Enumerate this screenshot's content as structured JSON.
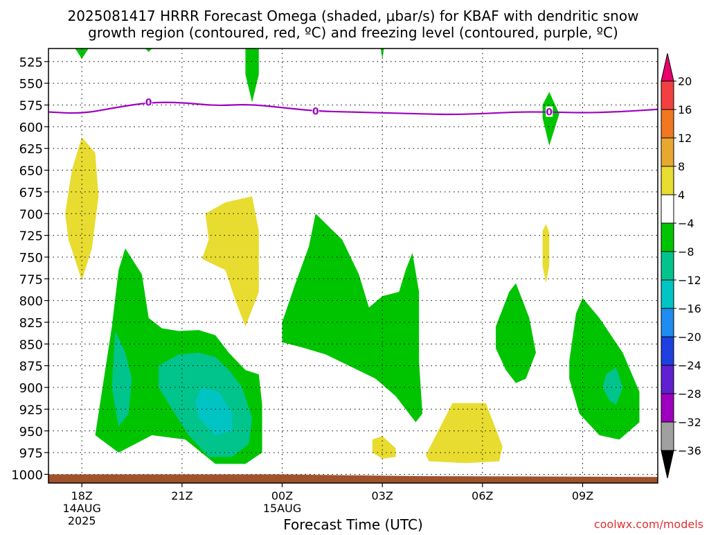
{
  "header": {
    "title_line1": "2025081417 HRRR Forecast Omega (shaded, μbar/s) for KBAF with dendritic snow",
    "title_line2": "growth region (contoured, red, ºC) and freezing level (contoured, purple, ºC)"
  },
  "footer": {
    "credit": "coolwx.com/models"
  },
  "chart_data": {
    "type": "time-height contour",
    "xlabel": "Forecast Time (UTC)",
    "x_ticks": [
      {
        "hour": 18,
        "label": "18Z",
        "label2": "14AUG",
        "label3": "2025"
      },
      {
        "hour": 21,
        "label": "21Z",
        "label2": "",
        "label3": ""
      },
      {
        "hour": 24,
        "label": "00Z",
        "label2": "15AUG",
        "label3": ""
      },
      {
        "hour": 27,
        "label": "03Z",
        "label2": "",
        "label3": ""
      },
      {
        "hour": 30,
        "label": "06Z",
        "label2": "",
        "label3": ""
      },
      {
        "hour": 33,
        "label": "09Z",
        "label2": "",
        "label3": ""
      }
    ],
    "xlim": [
      17,
      35.25
    ],
    "y_ticks": [
      525,
      550,
      575,
      600,
      625,
      650,
      675,
      700,
      725,
      750,
      775,
      800,
      825,
      850,
      875,
      900,
      925,
      950,
      975,
      1000
    ],
    "ylim": [
      510,
      1010
    ],
    "grid": true,
    "colorbar": {
      "labels": [
        "20",
        "16",
        "12",
        "8",
        "4",
        "−4",
        "−8",
        "−12",
        "−16",
        "−20",
        "−24",
        "−28",
        "−32",
        "−36"
      ],
      "colors": [
        "#e8006e",
        "#f24040",
        "#f07820",
        "#e8a830",
        "#e8dc30",
        "#ffffff",
        "#00c400",
        "#00c48c",
        "#00c4c4",
        "#1e8cf0",
        "#1e40e0",
        "#6020d0",
        "#9e00c0",
        "#a0a0a0",
        "#000000"
      ]
    },
    "freezing_level": {
      "label": "0",
      "color": "#9e00c0",
      "points": [
        [
          17,
          583
        ],
        [
          18,
          585
        ],
        [
          19,
          578
        ],
        [
          20,
          572
        ],
        [
          21,
          572
        ],
        [
          22,
          576
        ],
        [
          23,
          574
        ],
        [
          24,
          578
        ],
        [
          25,
          582
        ],
        [
          26,
          583
        ],
        [
          27,
          584
        ],
        [
          28,
          585
        ],
        [
          29,
          586
        ],
        [
          30,
          585
        ],
        [
          31,
          583
        ],
        [
          32,
          583
        ],
        [
          33,
          584
        ],
        [
          34,
          583
        ],
        [
          35.25,
          580
        ]
      ],
      "label_hours": [
        20,
        25,
        32
      ]
    },
    "terrain": {
      "color": "#a0522d",
      "top": [
        [
          17,
          1000
        ],
        [
          24,
          1000
        ],
        [
          28,
          1002
        ],
        [
          35.25,
          1003
        ]
      ]
    },
    "omega_regions": [
      {
        "color": "#00c400",
        "points": [
          [
            17.8,
            510
          ],
          [
            18.2,
            510
          ],
          [
            18.0,
            522
          ]
        ]
      },
      {
        "color": "#00c400",
        "points": [
          [
            19.9,
            510
          ],
          [
            20.1,
            510
          ],
          [
            20.0,
            514
          ]
        ]
      },
      {
        "color": "#00c400",
        "points": [
          [
            22.9,
            510
          ],
          [
            23.3,
            510
          ],
          [
            23.3,
            540
          ],
          [
            23.1,
            572
          ],
          [
            22.9,
            540
          ]
        ]
      },
      {
        "color": "#00c400",
        "points": [
          [
            26.95,
            510
          ],
          [
            27.05,
            510
          ],
          [
            27.0,
            522
          ]
        ]
      },
      {
        "color": "#00c400",
        "points": [
          [
            32.0,
            560
          ],
          [
            32.3,
            585
          ],
          [
            32.0,
            622
          ],
          [
            31.8,
            590
          ],
          [
            31.8,
            575
          ]
        ]
      },
      {
        "color": "#e8dc30",
        "points": [
          [
            18.0,
            612
          ],
          [
            18.4,
            630
          ],
          [
            18.5,
            680
          ],
          [
            18.3,
            740
          ],
          [
            18.0,
            777
          ],
          [
            17.6,
            730
          ],
          [
            17.5,
            700
          ],
          [
            17.7,
            650
          ]
        ]
      },
      {
        "color": "#e8dc30",
        "points": [
          [
            21.7,
            700
          ],
          [
            22.3,
            687
          ],
          [
            23.1,
            680
          ],
          [
            23.3,
            720
          ],
          [
            23.3,
            790
          ],
          [
            22.9,
            830
          ],
          [
            22.6,
            800
          ],
          [
            22.3,
            765
          ],
          [
            21.6,
            752
          ],
          [
            21.8,
            730
          ]
        ]
      },
      {
        "color": "#e8dc30",
        "points": [
          [
            31.9,
            712
          ],
          [
            32.0,
            722
          ],
          [
            32.0,
            760
          ],
          [
            31.9,
            780
          ],
          [
            31.8,
            760
          ],
          [
            31.8,
            720
          ]
        ]
      },
      {
        "color": "#e8dc30",
        "points": [
          [
            26.7,
            960
          ],
          [
            27.0,
            956
          ],
          [
            27.4,
            970
          ],
          [
            27.4,
            980
          ],
          [
            27.0,
            982
          ],
          [
            26.7,
            975
          ]
        ]
      },
      {
        "color": "#e8dc30",
        "points": [
          [
            28.3,
            978
          ],
          [
            29.1,
            918
          ],
          [
            30.1,
            918
          ],
          [
            30.6,
            968
          ],
          [
            30.5,
            985
          ],
          [
            29.5,
            987
          ],
          [
            28.4,
            985
          ]
        ]
      },
      {
        "color": "#00c400",
        "points": [
          [
            18.9,
            830
          ],
          [
            19.1,
            765
          ],
          [
            19.3,
            740
          ],
          [
            19.8,
            770
          ],
          [
            20.0,
            820
          ],
          [
            20.4,
            832
          ],
          [
            20.9,
            835
          ],
          [
            21.5,
            834
          ],
          [
            22.0,
            840
          ],
          [
            22.4,
            860
          ],
          [
            22.9,
            880
          ],
          [
            23.3,
            885
          ],
          [
            23.4,
            920
          ],
          [
            23.4,
            975
          ],
          [
            22.9,
            988
          ],
          [
            22.0,
            988
          ],
          [
            21.1,
            960
          ],
          [
            20.1,
            955
          ],
          [
            19.1,
            975
          ],
          [
            18.4,
            955
          ]
        ]
      },
      {
        "color": "#00c48c",
        "points": [
          [
            19.0,
            835
          ],
          [
            19.3,
            860
          ],
          [
            19.5,
            890
          ],
          [
            19.4,
            930
          ],
          [
            19.1,
            945
          ],
          [
            18.9,
            900
          ]
        ]
      },
      {
        "color": "#00c48c",
        "points": [
          [
            20.3,
            875
          ],
          [
            20.9,
            862
          ],
          [
            21.5,
            860
          ],
          [
            22.0,
            865
          ],
          [
            22.4,
            880
          ],
          [
            22.8,
            900
          ],
          [
            23.1,
            935
          ],
          [
            23.0,
            965
          ],
          [
            22.5,
            980
          ],
          [
            21.8,
            980
          ],
          [
            21.2,
            955
          ],
          [
            20.7,
            925
          ],
          [
            20.3,
            900
          ]
        ]
      },
      {
        "color": "#00c4c4",
        "points": [
          [
            21.6,
            900
          ],
          [
            22.1,
            905
          ],
          [
            22.5,
            930
          ],
          [
            22.5,
            950
          ],
          [
            22.0,
            955
          ],
          [
            21.5,
            935
          ],
          [
            21.4,
            915
          ]
        ]
      },
      {
        "color": "#00c400",
        "points": [
          [
            24.0,
            825
          ],
          [
            24.4,
            780
          ],
          [
            24.8,
            738
          ],
          [
            25.0,
            700
          ],
          [
            25.4,
            715
          ],
          [
            25.8,
            730
          ],
          [
            26.3,
            770
          ],
          [
            26.6,
            808
          ],
          [
            27.0,
            795
          ],
          [
            27.5,
            790
          ],
          [
            27.7,
            765
          ],
          [
            27.9,
            745
          ],
          [
            28.1,
            790
          ],
          [
            28.1,
            870
          ],
          [
            28.2,
            930
          ],
          [
            28.0,
            940
          ],
          [
            27.4,
            910
          ],
          [
            26.8,
            890
          ],
          [
            26.0,
            875
          ],
          [
            25.3,
            862
          ],
          [
            24.6,
            854
          ],
          [
            24.0,
            848
          ]
        ]
      },
      {
        "color": "#00c400",
        "points": [
          [
            30.4,
            830
          ],
          [
            30.8,
            790
          ],
          [
            31.0,
            780
          ],
          [
            31.4,
            820
          ],
          [
            31.6,
            860
          ],
          [
            31.3,
            890
          ],
          [
            31.0,
            895
          ],
          [
            30.7,
            880
          ],
          [
            30.4,
            855
          ]
        ]
      },
      {
        "color": "#00c400",
        "points": [
          [
            32.6,
            870
          ],
          [
            32.8,
            815
          ],
          [
            33.0,
            797
          ],
          [
            33.5,
            820
          ],
          [
            34.2,
            860
          ],
          [
            34.7,
            905
          ],
          [
            34.7,
            940
          ],
          [
            34.1,
            960
          ],
          [
            33.5,
            955
          ],
          [
            32.9,
            930
          ],
          [
            32.6,
            890
          ]
        ]
      },
      {
        "color": "#00c48c",
        "points": [
          [
            33.7,
            885
          ],
          [
            34.0,
            877
          ],
          [
            34.2,
            900
          ],
          [
            34.0,
            920
          ],
          [
            33.8,
            915
          ],
          [
            33.6,
            900
          ]
        ]
      }
    ]
  }
}
